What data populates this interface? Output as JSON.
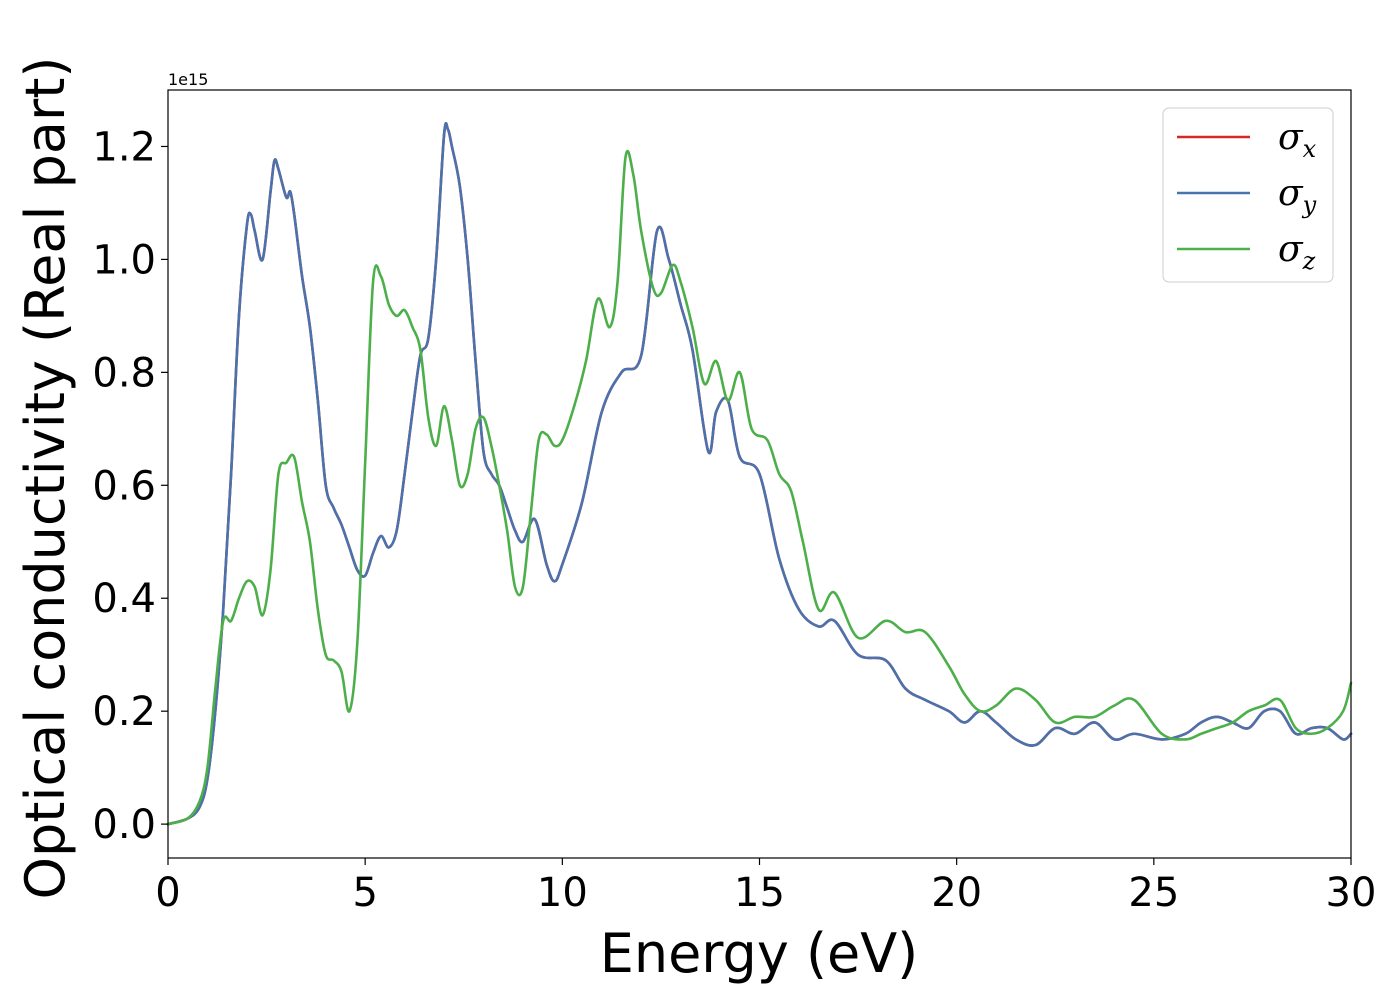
{
  "chart_data": {
    "type": "line",
    "title": "",
    "xlabel": "Energy (eV)",
    "ylabel": "Optical conductivity (Real part)",
    "y_offset_label": "1e15",
    "xlim": [
      0,
      30
    ],
    "ylim": [
      -0.06,
      1.3
    ],
    "xticks": [
      0,
      5,
      10,
      15,
      20,
      25,
      30
    ],
    "xtick_labels": [
      "0",
      "5",
      "10",
      "15",
      "20",
      "25",
      "30"
    ],
    "yticks": [
      0.0,
      0.2,
      0.4,
      0.6,
      0.8,
      1.0,
      1.2
    ],
    "ytick_labels": [
      "0.0",
      "0.2",
      "0.4",
      "0.6",
      "0.8",
      "1.0",
      "1.2"
    ],
    "grid": false,
    "legend_position": "top-right",
    "series": [
      {
        "name": "σ",
        "sub": "x",
        "color": "#d62728",
        "x": [
          0,
          0.5,
          0.8,
          1.0,
          1.2,
          1.4,
          1.6,
          1.8,
          2.0,
          2.1,
          2.2,
          2.4,
          2.6,
          2.7,
          2.8,
          3.0,
          3.1,
          3.2,
          3.4,
          3.6,
          3.8,
          4.0,
          4.2,
          4.4,
          4.6,
          4.8,
          5.0,
          5.2,
          5.4,
          5.6,
          5.8,
          6.0,
          6.2,
          6.4,
          6.6,
          6.8,
          7.0,
          7.1,
          7.2,
          7.4,
          7.6,
          7.8,
          8.0,
          8.2,
          8.4,
          8.6,
          8.8,
          9.0,
          9.3,
          9.6,
          9.8,
          10.0,
          10.5,
          11.0,
          11.5,
          12.0,
          12.4,
          12.7,
          13.0,
          13.3,
          13.7,
          13.9,
          14.2,
          14.5,
          15.0,
          15.5,
          16.0,
          16.5,
          16.9,
          17.5,
          18.2,
          18.7,
          19.2,
          19.8,
          20.2,
          20.6,
          21.0,
          21.5,
          22.0,
          22.5,
          23.0,
          23.5,
          24.0,
          24.5,
          25.2,
          25.8,
          26.2,
          26.6,
          27.0,
          27.4,
          27.8,
          28.2,
          28.6,
          29.0,
          29.4,
          29.8,
          30.0
        ],
        "y": [
          0.0,
          0.01,
          0.03,
          0.08,
          0.2,
          0.38,
          0.62,
          0.9,
          1.06,
          1.08,
          1.05,
          1.0,
          1.12,
          1.175,
          1.16,
          1.11,
          1.12,
          1.08,
          0.97,
          0.88,
          0.75,
          0.6,
          0.56,
          0.53,
          0.49,
          0.45,
          0.44,
          0.48,
          0.51,
          0.49,
          0.52,
          0.62,
          0.73,
          0.83,
          0.86,
          1.0,
          1.22,
          1.23,
          1.2,
          1.13,
          1.0,
          0.82,
          0.66,
          0.62,
          0.6,
          0.56,
          0.52,
          0.5,
          0.54,
          0.46,
          0.43,
          0.46,
          0.57,
          0.73,
          0.8,
          0.83,
          1.05,
          1.0,
          0.92,
          0.84,
          0.66,
          0.73,
          0.75,
          0.65,
          0.62,
          0.47,
          0.38,
          0.35,
          0.36,
          0.3,
          0.29,
          0.24,
          0.22,
          0.2,
          0.18,
          0.2,
          0.18,
          0.15,
          0.14,
          0.17,
          0.16,
          0.18,
          0.15,
          0.16,
          0.15,
          0.16,
          0.18,
          0.19,
          0.18,
          0.17,
          0.2,
          0.2,
          0.16,
          0.17,
          0.17,
          0.15,
          0.16
        ]
      },
      {
        "name": "σ",
        "sub": "y",
        "color": "#4a72ad",
        "x": [
          0,
          0.5,
          0.8,
          1.0,
          1.2,
          1.4,
          1.6,
          1.8,
          2.0,
          2.1,
          2.2,
          2.4,
          2.6,
          2.7,
          2.8,
          3.0,
          3.1,
          3.2,
          3.4,
          3.6,
          3.8,
          4.0,
          4.2,
          4.4,
          4.6,
          4.8,
          5.0,
          5.2,
          5.4,
          5.6,
          5.8,
          6.0,
          6.2,
          6.4,
          6.6,
          6.8,
          7.0,
          7.1,
          7.2,
          7.4,
          7.6,
          7.8,
          8.0,
          8.2,
          8.4,
          8.6,
          8.8,
          9.0,
          9.3,
          9.6,
          9.8,
          10.0,
          10.5,
          11.0,
          11.5,
          12.0,
          12.4,
          12.7,
          13.0,
          13.3,
          13.7,
          13.9,
          14.2,
          14.5,
          15.0,
          15.5,
          16.0,
          16.5,
          16.9,
          17.5,
          18.2,
          18.7,
          19.2,
          19.8,
          20.2,
          20.6,
          21.0,
          21.5,
          22.0,
          22.5,
          23.0,
          23.5,
          24.0,
          24.5,
          25.2,
          25.8,
          26.2,
          26.6,
          27.0,
          27.4,
          27.8,
          28.2,
          28.6,
          29.0,
          29.4,
          29.8,
          30.0
        ],
        "y": [
          0.0,
          0.01,
          0.03,
          0.08,
          0.2,
          0.38,
          0.62,
          0.9,
          1.06,
          1.08,
          1.05,
          1.0,
          1.12,
          1.175,
          1.16,
          1.11,
          1.12,
          1.08,
          0.97,
          0.88,
          0.75,
          0.6,
          0.56,
          0.53,
          0.49,
          0.45,
          0.44,
          0.48,
          0.51,
          0.49,
          0.52,
          0.62,
          0.73,
          0.83,
          0.86,
          1.0,
          1.22,
          1.23,
          1.2,
          1.13,
          1.0,
          0.82,
          0.66,
          0.62,
          0.6,
          0.56,
          0.52,
          0.5,
          0.54,
          0.46,
          0.43,
          0.46,
          0.57,
          0.73,
          0.8,
          0.83,
          1.05,
          1.0,
          0.92,
          0.84,
          0.66,
          0.73,
          0.75,
          0.65,
          0.62,
          0.47,
          0.38,
          0.35,
          0.36,
          0.3,
          0.29,
          0.24,
          0.22,
          0.2,
          0.18,
          0.2,
          0.18,
          0.15,
          0.14,
          0.17,
          0.16,
          0.18,
          0.15,
          0.16,
          0.15,
          0.16,
          0.18,
          0.19,
          0.18,
          0.17,
          0.2,
          0.2,
          0.16,
          0.17,
          0.17,
          0.15,
          0.16
        ]
      },
      {
        "name": "σ",
        "sub": "z",
        "color": "#4daf4a",
        "x": [
          0,
          0.5,
          0.8,
          1.0,
          1.2,
          1.4,
          1.6,
          1.8,
          2.0,
          2.2,
          2.4,
          2.6,
          2.8,
          3.0,
          3.2,
          3.4,
          3.6,
          3.8,
          4.0,
          4.2,
          4.4,
          4.6,
          4.8,
          5.0,
          5.2,
          5.4,
          5.6,
          5.8,
          6.0,
          6.2,
          6.4,
          6.6,
          6.8,
          7.0,
          7.2,
          7.4,
          7.6,
          7.8,
          8.0,
          8.2,
          8.4,
          8.6,
          8.8,
          9.0,
          9.2,
          9.4,
          9.6,
          9.8,
          10.0,
          10.3,
          10.6,
          10.9,
          11.2,
          11.4,
          11.6,
          11.8,
          12.0,
          12.3,
          12.5,
          12.8,
          13.0,
          13.3,
          13.6,
          13.9,
          14.2,
          14.5,
          14.8,
          15.2,
          15.5,
          15.8,
          16.1,
          16.5,
          16.9,
          17.5,
          18.2,
          18.7,
          19.2,
          19.8,
          20.2,
          20.6,
          21.0,
          21.5,
          22.0,
          22.5,
          23.0,
          23.5,
          24.0,
          24.5,
          25.2,
          25.8,
          26.2,
          26.6,
          27.0,
          27.4,
          27.8,
          28.2,
          28.6,
          29.0,
          29.4,
          29.8,
          30.0
        ],
        "y": [
          0.0,
          0.01,
          0.04,
          0.1,
          0.24,
          0.36,
          0.36,
          0.4,
          0.43,
          0.42,
          0.37,
          0.45,
          0.62,
          0.64,
          0.65,
          0.57,
          0.5,
          0.38,
          0.3,
          0.29,
          0.27,
          0.2,
          0.32,
          0.64,
          0.96,
          0.97,
          0.92,
          0.9,
          0.91,
          0.88,
          0.84,
          0.72,
          0.67,
          0.74,
          0.68,
          0.6,
          0.62,
          0.7,
          0.72,
          0.67,
          0.6,
          0.52,
          0.42,
          0.42,
          0.55,
          0.68,
          0.69,
          0.67,
          0.68,
          0.74,
          0.82,
          0.93,
          0.88,
          0.96,
          1.18,
          1.15,
          1.05,
          0.95,
          0.94,
          0.99,
          0.96,
          0.88,
          0.78,
          0.82,
          0.75,
          0.8,
          0.7,
          0.68,
          0.62,
          0.59,
          0.5,
          0.38,
          0.41,
          0.33,
          0.36,
          0.34,
          0.34,
          0.28,
          0.23,
          0.2,
          0.21,
          0.24,
          0.22,
          0.18,
          0.19,
          0.19,
          0.21,
          0.22,
          0.16,
          0.15,
          0.16,
          0.17,
          0.18,
          0.2,
          0.21,
          0.22,
          0.17,
          0.16,
          0.17,
          0.2,
          0.25
        ]
      }
    ]
  }
}
